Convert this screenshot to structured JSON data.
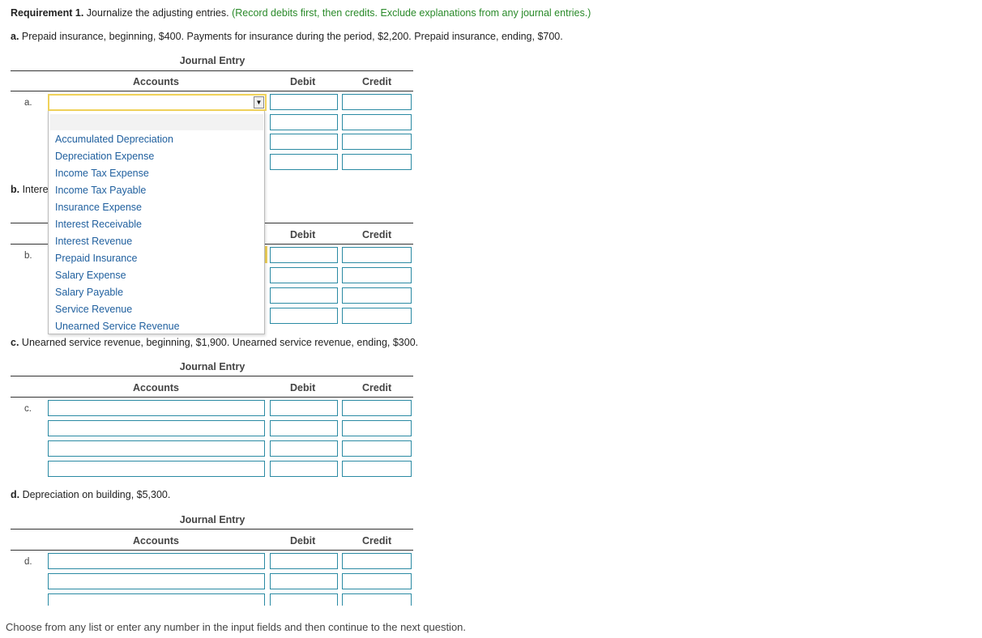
{
  "requirement": {
    "label": "Requirement 1.",
    "text": " Journalize the adjusting entries.",
    "note": "(Record debits first, then credits. Exclude explanations from any journal entries.)"
  },
  "questions": {
    "a": {
      "letter": "a.",
      "text": " Prepaid insurance, beginning, $400. Payments for insurance during the period, $2,200. Prepaid insurance, ending, $700."
    },
    "b": {
      "letter": "b.",
      "text": " Intere"
    },
    "c": {
      "letter": "c.",
      "text": " Unearned service revenue, beginning, $1,900. Unearned service revenue, ending, $300."
    },
    "d": {
      "letter": "d.",
      "text": " Depreciation on building, $5,300."
    }
  },
  "journal": {
    "title": "Journal Entry",
    "col_accounts": "Accounts",
    "col_debit": "Debit",
    "col_credit": "Credit"
  },
  "row_labels": {
    "a": "a.",
    "b": "b.",
    "c": "c.",
    "d": "d."
  },
  "dropdown": {
    "options": [
      "Accumulated Depreciation",
      "Depreciation Expense",
      "Income Tax Expense",
      "Income Tax Payable",
      "Insurance Expense",
      "Interest Receivable",
      "Interest Revenue",
      "Prepaid Insurance",
      "Salary Expense",
      "Salary Payable",
      "Service Revenue",
      "Unearned Service Revenue"
    ]
  },
  "footer": "Choose from any list or enter any number in the input fields and then continue to the next question.",
  "colors": {
    "accent": "#2a8aa3",
    "note_green": "#2a8a2a",
    "link_blue": "#1f5f9e",
    "highlight": "#f0d25a"
  }
}
